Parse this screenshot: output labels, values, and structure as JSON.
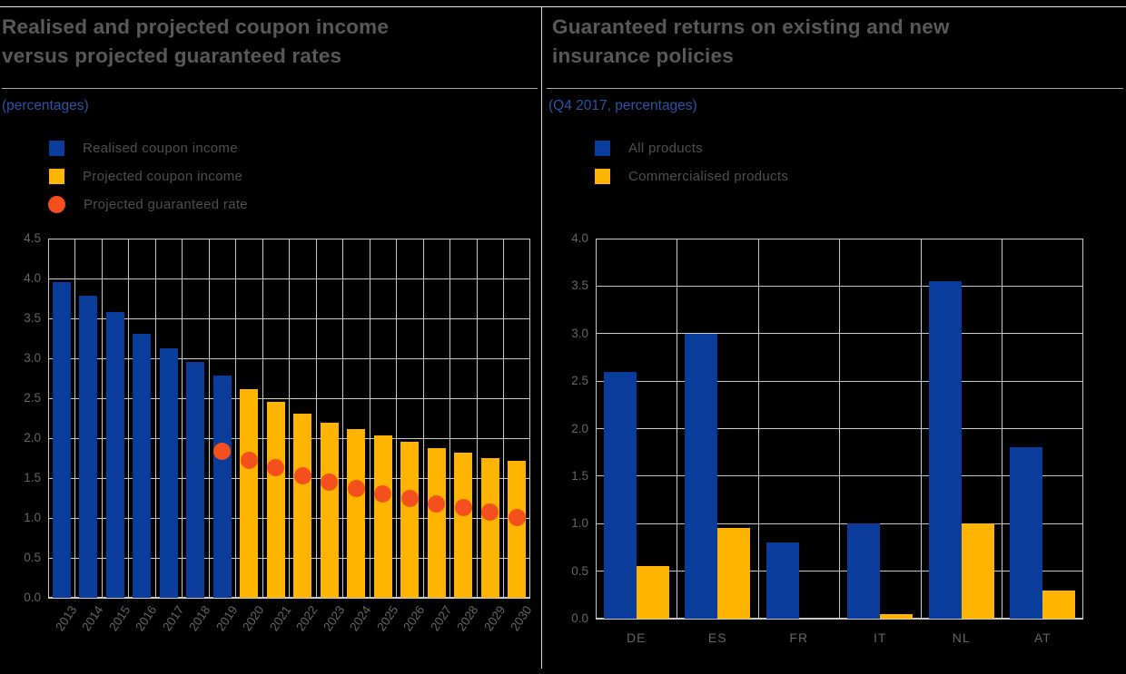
{
  "left_panel": {
    "title": "Realised and projected coupon income versus projected guaranteed rates",
    "subtitle": "(percentages)",
    "legend": [
      {
        "label": "Realised coupon income",
        "marker": "square",
        "color": "#0a3d9b"
      },
      {
        "label": "Projected coupon income",
        "marker": "square",
        "color": "#ffb400"
      },
      {
        "label": "Projected guaranteed rate",
        "marker": "circle",
        "color": "#f3501e"
      }
    ]
  },
  "right_panel": {
    "title": "Guaranteed returns on existing and new insurance policies",
    "subtitle": "(Q4 2017, percentages)",
    "legend": [
      {
        "label": "All products",
        "marker": "square",
        "color": "#0a3d9b"
      },
      {
        "label": "Commercialised products",
        "marker": "square",
        "color": "#ffb400"
      }
    ]
  },
  "colors": {
    "bar_blue": "#0a3d9b",
    "bar_yellow": "#ffb400",
    "dot_orange": "#f3501e",
    "title_grey": "#595959",
    "subtitle_blue": "#2b55a6",
    "grid_grey": "#c9c9c9",
    "tick_grey": "#666666"
  },
  "chart_data": [
    {
      "type": "bar",
      "title": "Realised and projected coupon income versus projected guaranteed rates",
      "subtitle": "(percentages)",
      "categories": [
        "2013",
        "2014",
        "2015",
        "2016",
        "2017",
        "2018",
        "2019",
        "2020",
        "2021",
        "2022",
        "2023",
        "2024",
        "2025",
        "2026",
        "2027",
        "2028",
        "2029",
        "2030"
      ],
      "series": [
        {
          "name": "Realised coupon income",
          "type": "bar",
          "color": "#0a3d9b",
          "values": [
            3.95,
            3.78,
            3.58,
            3.31,
            3.13,
            2.96,
            2.78,
            null,
            null,
            null,
            null,
            null,
            null,
            null,
            null,
            null,
            null,
            null
          ]
        },
        {
          "name": "Projected coupon income",
          "type": "bar",
          "color": "#ffb400",
          "values": [
            null,
            null,
            null,
            null,
            null,
            null,
            null,
            2.61,
            2.46,
            2.31,
            2.19,
            2.11,
            2.03,
            1.95,
            1.88,
            1.82,
            1.75,
            1.72
          ]
        },
        {
          "name": "Projected guaranteed rate",
          "type": "point",
          "color": "#f3501e",
          "values": [
            null,
            null,
            null,
            null,
            null,
            null,
            1.84,
            1.72,
            1.63,
            1.53,
            1.45,
            1.37,
            1.3,
            1.24,
            1.18,
            1.13,
            1.07,
            1.01
          ]
        }
      ],
      "xlabel": "",
      "ylabel": "",
      "ylim": [
        0,
        4.5
      ],
      "ytick_step": 0.5,
      "grid": true,
      "xticklabel_rotation": -56,
      "legend_position": "top-left"
    },
    {
      "type": "bar",
      "title": "Guaranteed returns on existing and new insurance policies",
      "subtitle": "(Q4 2017, percentages)",
      "categories": [
        "DE",
        "ES",
        "FR",
        "IT",
        "NL",
        "AT"
      ],
      "series": [
        {
          "name": "All products",
          "type": "bar",
          "color": "#0a3d9b",
          "values": [
            2.6,
            3.0,
            0.8,
            1.0,
            3.55,
            1.8
          ]
        },
        {
          "name": "Commercialised products",
          "type": "bar",
          "color": "#ffb400",
          "values": [
            0.55,
            0.95,
            null,
            0.05,
            1.0,
            0.3
          ]
        }
      ],
      "xlabel": "",
      "ylabel": "",
      "ylim": [
        0,
        4.0
      ],
      "ytick_step": 0.5,
      "grid": true,
      "xticklabel_rotation": 0,
      "legend_position": "top-left"
    }
  ]
}
